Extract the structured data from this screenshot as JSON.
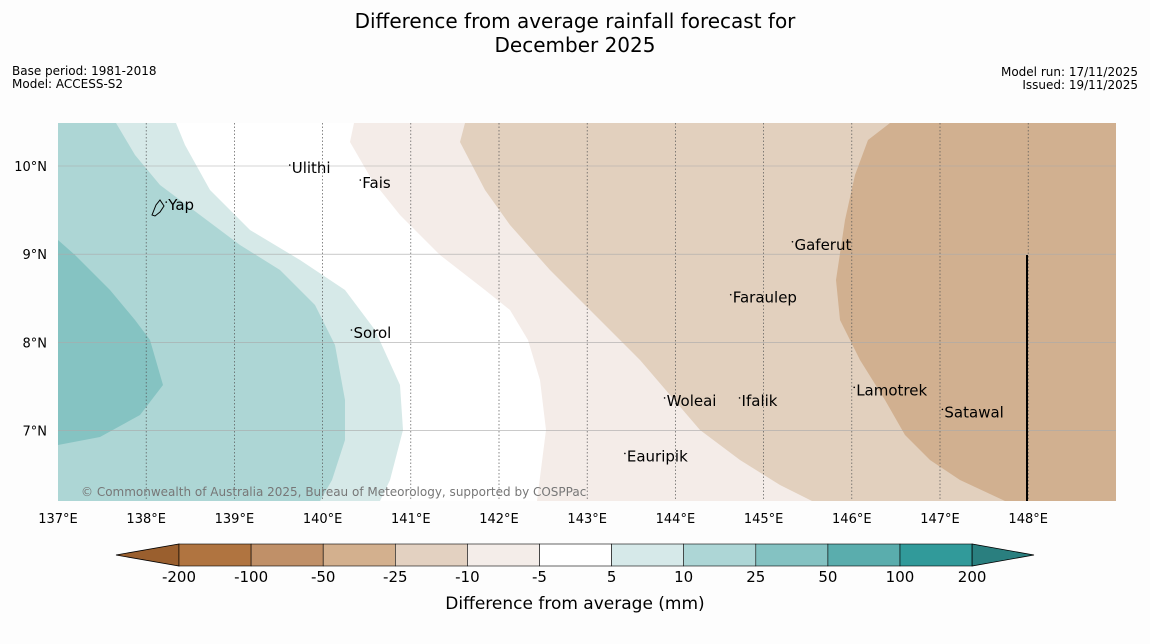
{
  "title_line1": "Difference from average rainfall forecast for",
  "title_line2": "December 2025",
  "base_period": "Base period: 1981-2018",
  "model": "Model: ACCESS-S2",
  "model_run": "Model run: 17/11/2025",
  "issued": "Issued: 19/11/2025",
  "copyright": "© Commonwealth of Australia 2025, Bureau of Meteorology, supported by COSPPac",
  "lon_labels": [
    "137°E",
    "138°E",
    "139°E",
    "140°E",
    "141°E",
    "142°E",
    "143°E",
    "144°E",
    "145°E",
    "146°E",
    "147°E",
    "148°E"
  ],
  "lat_labels": [
    "10°N",
    "9°N",
    "8°N",
    "7°N"
  ],
  "places": [
    {
      "name": "Yap",
      "lon": 138.25,
      "lat": 9.5
    },
    {
      "name": "Ulithi",
      "lon": 139.65,
      "lat": 9.92
    },
    {
      "name": "Fais",
      "lon": 140.45,
      "lat": 9.75
    },
    {
      "name": "Gaferut",
      "lon": 145.35,
      "lat": 9.05
    },
    {
      "name": "Faraulep",
      "lon": 144.65,
      "lat": 8.45
    },
    {
      "name": "Sorol",
      "lon": 140.35,
      "lat": 8.05
    },
    {
      "name": "Lamotrek",
      "lon": 146.05,
      "lat": 7.4
    },
    {
      "name": "Woleai",
      "lon": 143.9,
      "lat": 7.28
    },
    {
      "name": "Ifalik",
      "lon": 144.75,
      "lat": 7.28
    },
    {
      "name": "Satawal",
      "lon": 147.05,
      "lat": 7.15
    },
    {
      "name": "Eauripik",
      "lon": 143.45,
      "lat": 6.65
    }
  ],
  "colorbar": {
    "title": "Difference from average (mm)",
    "labels": [
      "-200",
      "-100",
      "-50",
      "-25",
      "-10",
      "-5",
      "5",
      "10",
      "25",
      "50",
      "100",
      "200"
    ],
    "colors": [
      "#b07440",
      "#c09068",
      "#d3b08e",
      "#e3d1c1",
      "#f4ede9",
      "#ffffff",
      "#d6e9e9",
      "#add6d6",
      "#84c2c2",
      "#5aadad",
      "#319a9a"
    ],
    "extend_low": "#9a5f2e",
    "extend_high": "#2a7f7f"
  },
  "map_extent": {
    "lon_min": 137.0,
    "lon_max": 149.0,
    "lat_min": 6.2,
    "lat_max": 10.5
  },
  "legend_colors": {
    "brown_dark": "#d1b090",
    "brown_mid": "#e2d0be",
    "brown_light": "#f4ece8",
    "white": "#ffffff",
    "teal_lightest": "#d6e9e8",
    "teal_light": "#add6d5",
    "teal_mid": "#85c3c2"
  }
}
